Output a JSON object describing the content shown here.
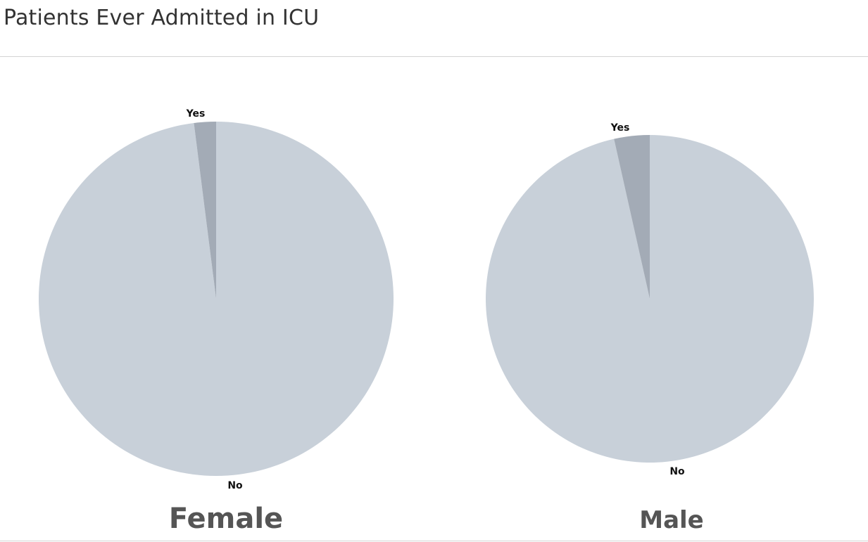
{
  "title": "Patients Ever Admitted in ICU",
  "chart_data": {
    "type": "pie",
    "colors": {
      "No": "#c8d0d9",
      "Yes": "#a3abb6"
    },
    "charts": [
      {
        "label": "Female",
        "slices": [
          {
            "name": "Yes",
            "value": 2
          },
          {
            "name": "No",
            "value": 98
          }
        ]
      },
      {
        "label": "Male",
        "slices": [
          {
            "name": "Yes",
            "value": 3.5
          },
          {
            "name": "No",
            "value": 96.5
          }
        ]
      }
    ]
  }
}
